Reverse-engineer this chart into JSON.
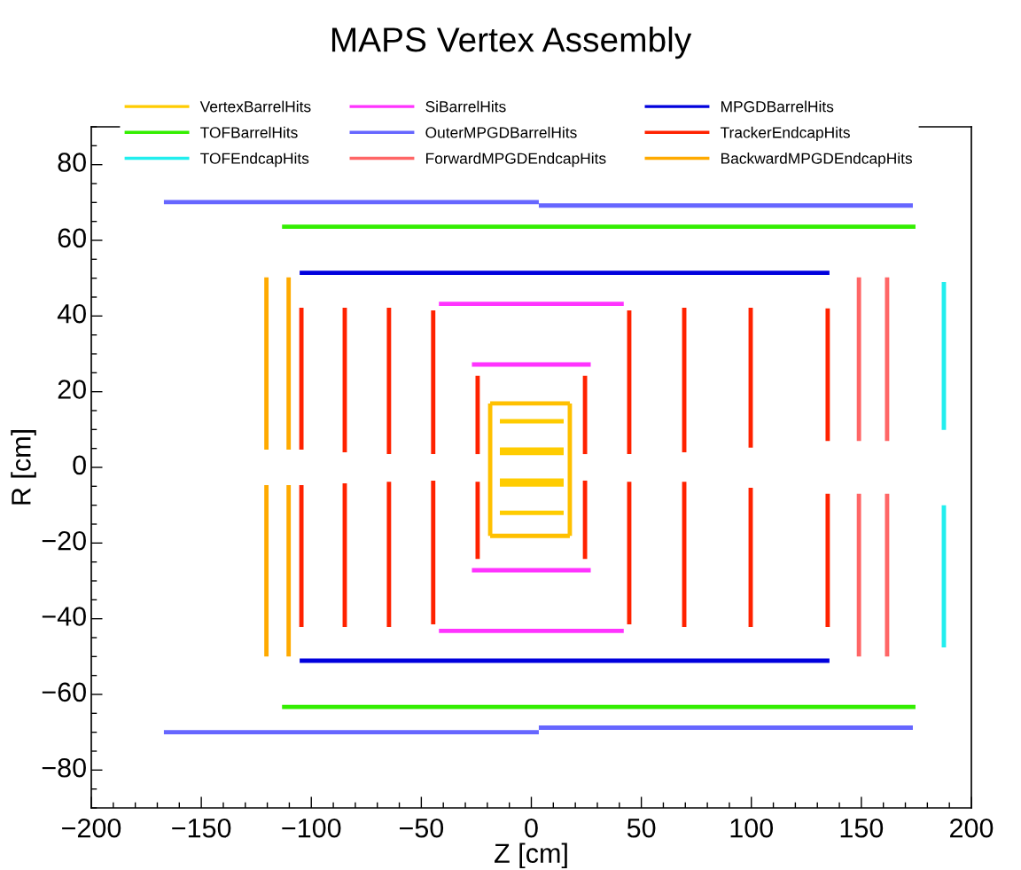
{
  "chart_data": {
    "type": "line",
    "title": "MAPS Vertex Assembly",
    "xlabel": "Z [cm]",
    "ylabel": "R [cm]",
    "xlim": [
      -200,
      200
    ],
    "ylim": [
      -90,
      90
    ],
    "xticks": [
      {
        "value": -200,
        "label": "−200"
      },
      {
        "value": -150,
        "label": "−150"
      },
      {
        "value": -100,
        "label": "−100"
      },
      {
        "value": -50,
        "label": "−50"
      },
      0,
      50,
      100,
      150,
      200
    ],
    "yticks": [
      {
        "value": -80,
        "label": "−80"
      },
      {
        "value": -60,
        "label": "−60"
      },
      {
        "value": -40,
        "label": "−40"
      },
      {
        "value": -20,
        "label": "−20"
      },
      0,
      20,
      40,
      60,
      80
    ],
    "grid": false,
    "legend": "top",
    "marker": "none",
    "line_style": "solid",
    "series": [
      {
        "name": "VertexBarrelHits",
        "color": "#ffcc00",
        "x": [
          -14.3,
          14.7
        ],
        "values": [
          12.2,
          12.2
        ]
      },
      {
        "color": "#ffcc00",
        "x": [
          -14.3,
          14.7
        ],
        "values": [
          4.7,
          4.7
        ]
      },
      {
        "color": "#ffcc00",
        "x": [
          -14.3,
          14.7
        ],
        "values": [
          3.8,
          3.8
        ]
      },
      {
        "color": "#ffcc00",
        "x": [
          -14.3,
          14.7
        ],
        "values": [
          -3.5,
          -3.5
        ]
      },
      {
        "color": "#ffcc00",
        "x": [
          -14.3,
          14.7
        ],
        "values": [
          -4.5,
          -4.5
        ]
      },
      {
        "color": "#ffcc00",
        "x": [
          -14.3,
          14.7
        ],
        "values": [
          -12,
          -12
        ]
      },
      {
        "name": "SiBarrelHits",
        "color": "#ff33ff",
        "x": [
          -42,
          42
        ],
        "values": [
          43.2,
          43.2
        ]
      },
      {
        "color": "#ff33ff",
        "x": [
          -27,
          27
        ],
        "values": [
          27.2,
          27.2
        ]
      },
      {
        "color": "#ff33ff",
        "x": [
          -27,
          27
        ],
        "values": [
          -27.2,
          -27.2
        ]
      },
      {
        "color": "#ff33ff",
        "x": [
          -42,
          42
        ],
        "values": [
          -43.2,
          -43.2
        ]
      },
      {
        "name": "MPGDBarrelHits",
        "color": "#0000dd",
        "x": [
          -105.3,
          135.5
        ],
        "values": [
          51.4,
          51.4
        ]
      },
      {
        "color": "#0000dd",
        "x": [
          -105.3,
          135.5
        ],
        "values": [
          -51.1,
          -51.1
        ]
      },
      {
        "name": "TOFBarrelHits",
        "color": "#33ee00",
        "x": [
          -113.3,
          174.6
        ],
        "values": [
          63.6,
          63.6
        ]
      },
      {
        "color": "#33ee00",
        "x": [
          -113.3,
          174.6
        ],
        "values": [
          -63.3,
          -63.3
        ]
      },
      {
        "name": "OuterMPGDBarrelHits",
        "color": "#6666ff",
        "x": [
          -167,
          3.4
        ],
        "values": [
          70.1,
          70.1
        ]
      },
      {
        "color": "#6666ff",
        "x": [
          3.4,
          173.4
        ],
        "values": [
          69.2,
          69.2
        ]
      },
      {
        "color": "#6666ff",
        "x": [
          -167,
          3.4
        ],
        "values": [
          -70,
          -70
        ]
      },
      {
        "color": "#6666ff",
        "x": [
          3.4,
          173.4
        ],
        "values": [
          -68.8,
          -68.8
        ]
      },
      {
        "name": "TrackerEndcapHits",
        "color": "#ff2200",
        "x": [
          -104.5,
          -104.5
        ],
        "values": [
          42.2,
          4.7
        ]
      },
      {
        "color": "#ff2200",
        "x": [
          -84.8,
          -84.8
        ],
        "values": [
          42.2,
          4
        ]
      },
      {
        "color": "#ff2200",
        "x": [
          -64.7,
          -64.7
        ],
        "values": [
          42.2,
          3.5
        ]
      },
      {
        "color": "#ff2200",
        "x": [
          -44.6,
          -44.6
        ],
        "values": [
          41.5,
          3.5
        ]
      },
      {
        "color": "#ff2200",
        "x": [
          -24.4,
          -24.4
        ],
        "values": [
          24.2,
          3.5
        ]
      },
      {
        "color": "#ff2200",
        "x": [
          24.4,
          24.4
        ],
        "values": [
          24.2,
          3.5
        ]
      },
      {
        "color": "#ff2200",
        "x": [
          44.5,
          44.5
        ],
        "values": [
          41.5,
          3.5
        ]
      },
      {
        "color": "#ff2200",
        "x": [
          69.5,
          69.5
        ],
        "values": [
          42.2,
          4
        ]
      },
      {
        "color": "#ff2200",
        "x": [
          99.7,
          99.7
        ],
        "values": [
          42.2,
          5.2
        ]
      },
      {
        "color": "#ff2200",
        "x": [
          134.7,
          134.7
        ],
        "values": [
          42,
          7
        ]
      },
      {
        "color": "#ff2200",
        "x": [
          -104.5,
          -104.5
        ],
        "values": [
          -4.7,
          -42.2
        ]
      },
      {
        "color": "#ff2200",
        "x": [
          -84.8,
          -84.8
        ],
        "values": [
          -4.2,
          -42.2
        ]
      },
      {
        "color": "#ff2200",
        "x": [
          -64.7,
          -64.7
        ],
        "values": [
          -3.8,
          -42.2
        ]
      },
      {
        "color": "#ff2200",
        "x": [
          -44.6,
          -44.6
        ],
        "values": [
          -3.5,
          -41.5
        ]
      },
      {
        "color": "#ff2200",
        "x": [
          -24.4,
          -24.4
        ],
        "values": [
          -3.8,
          -24.2
        ]
      },
      {
        "color": "#ff2200",
        "x": [
          24.4,
          24.4
        ],
        "values": [
          -3.5,
          -24.2
        ]
      },
      {
        "color": "#ff2200",
        "x": [
          44.5,
          44.5
        ],
        "values": [
          -3.8,
          -41.5
        ]
      },
      {
        "color": "#ff2200",
        "x": [
          69.5,
          69.5
        ],
        "values": [
          -3.8,
          -42.2
        ]
      },
      {
        "color": "#ff2200",
        "x": [
          99.7,
          99.7
        ],
        "values": [
          -5.4,
          -42.2
        ]
      },
      {
        "color": "#ff2200",
        "x": [
          134.7,
          134.7
        ],
        "values": [
          -7,
          -42.2
        ]
      },
      {
        "name": "TOFEndcapHits",
        "color": "#22eeee",
        "x": [
          187.5,
          187.5
        ],
        "values": [
          49,
          9.9
        ]
      },
      {
        "color": "#22eeee",
        "x": [
          187.5,
          187.5
        ],
        "values": [
          -10,
          -47.6
        ]
      },
      {
        "name": "ForwardMPGDEndcapHits",
        "color": "#ff6666",
        "x": [
          148.9,
          148.9
        ],
        "values": [
          50.2,
          7
        ]
      },
      {
        "color": "#ff6666",
        "x": [
          161.7,
          161.7
        ],
        "values": [
          50.2,
          7
        ]
      },
      {
        "color": "#ff6666",
        "x": [
          148.9,
          148.9
        ],
        "values": [
          -7,
          -50
        ]
      },
      {
        "color": "#ff6666",
        "x": [
          161.7,
          161.7
        ],
        "values": [
          -7,
          -50
        ]
      },
      {
        "name": "BackwardMPGDEndcapHits",
        "color": "#ffaa00",
        "x": [
          -120.4,
          -120.4
        ],
        "values": [
          50.2,
          4.7
        ]
      },
      {
        "color": "#ffaa00",
        "x": [
          -110.3,
          -110.3
        ],
        "values": [
          50.2,
          4.7
        ]
      },
      {
        "color": "#ffaa00",
        "x": [
          -120.4,
          -120.4
        ],
        "values": [
          -4.7,
          -50
        ]
      },
      {
        "color": "#ffaa00",
        "x": [
          -110.3,
          -110.3
        ],
        "values": [
          -4.7,
          -50
        ]
      },
      {
        "color": "#ffc000",
        "x": [
          -18.7,
          17.5
        ],
        "values": [
          16.9,
          16.9
        ]
      },
      {
        "color": "#ffc000",
        "x": [
          17.5,
          17.5
        ],
        "values": [
          16.9,
          -18.1
        ]
      },
      {
        "color": "#ffc000",
        "x": [
          -18.7,
          17.5
        ],
        "values": [
          -18.1,
          -18.1
        ]
      },
      {
        "color": "#ffc000",
        "x": [
          -18.7,
          -18.7
        ],
        "values": [
          16.9,
          -18.1
        ]
      }
    ]
  }
}
